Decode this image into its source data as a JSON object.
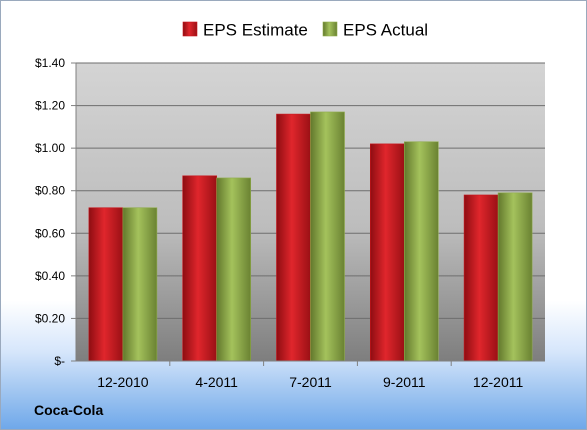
{
  "company": "Coca-Cola",
  "colors": {
    "estimate": "#c8161d",
    "actual": "#8fac4a"
  },
  "chart_data": {
    "type": "bar",
    "categories": [
      "12-2010",
      "4-2011",
      "7-2011",
      "9-2011",
      "12-2011"
    ],
    "series": [
      {
        "name": "EPS Estimate",
        "values": [
          0.72,
          0.87,
          1.16,
          1.02,
          0.78
        ]
      },
      {
        "name": "EPS Actual",
        "values": [
          0.72,
          0.86,
          1.17,
          1.03,
          0.79
        ]
      }
    ],
    "yticks": [
      {
        "value": 0,
        "label": "$-"
      },
      {
        "value": 0.2,
        "label": "$0.20"
      },
      {
        "value": 0.4,
        "label": "$0.40"
      },
      {
        "value": 0.6,
        "label": "$0.60"
      },
      {
        "value": 0.8,
        "label": "$0.80"
      },
      {
        "value": 1.0,
        "label": "$1.00"
      },
      {
        "value": 1.2,
        "label": "$1.20"
      },
      {
        "value": 1.4,
        "label": "$1.40"
      }
    ],
    "ylim": [
      0,
      1.4
    ],
    "grid": true,
    "legend_position": "top"
  }
}
